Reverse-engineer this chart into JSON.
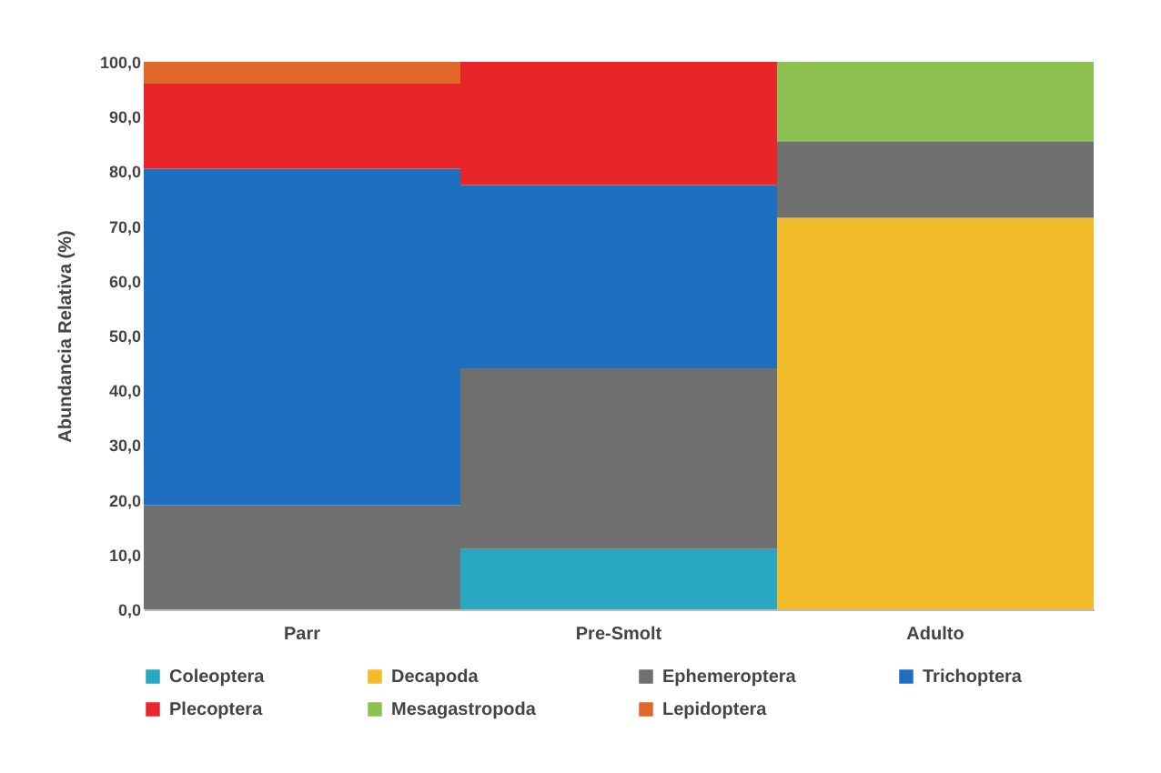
{
  "chart_data": {
    "type": "bar",
    "stacked": true,
    "ylabel": "Abundancia Relativa (%)",
    "categories": [
      "Parr",
      "Pre-Smolt",
      "Adulto"
    ],
    "series": [
      {
        "name": "Coleoptera",
        "color": "#2aa7c0",
        "values": [
          null,
          11,
          null
        ]
      },
      {
        "name": "Decapoda",
        "color": "#f2bb2a",
        "values": [
          null,
          null,
          71.5
        ]
      },
      {
        "name": "Ephemeroptera",
        "color": "#707070",
        "values": [
          19,
          33,
          14
        ]
      },
      {
        "name": "Trichoptera",
        "color": "#1f6fc0",
        "values": [
          61.5,
          33.5,
          null
        ]
      },
      {
        "name": "Plecoptera",
        "color": "#e8262a",
        "values": [
          15.5,
          22.5,
          null
        ]
      },
      {
        "name": "Mesagastropoda",
        "color": "#8cc152",
        "values": [
          null,
          null,
          14.5
        ]
      },
      {
        "name": "Lepidoptera",
        "color": "#e0672a",
        "values": [
          4,
          null,
          null
        ]
      }
    ],
    "ylim": [
      0,
      100
    ],
    "yticks": [
      {
        "value": 0,
        "label": "0,0"
      },
      {
        "value": 10,
        "label": "10,0"
      },
      {
        "value": 20,
        "label": "20,0"
      },
      {
        "value": 30,
        "label": "30,0"
      },
      {
        "value": 40,
        "label": "40,0"
      },
      {
        "value": 50,
        "label": "50,0"
      },
      {
        "value": 60,
        "label": "60,0"
      },
      {
        "value": 70,
        "label": "70,0"
      },
      {
        "value": 80,
        "label": "80,0"
      },
      {
        "value": 90,
        "label": "90,0"
      },
      {
        "value": 100,
        "label": "100,0"
      }
    ],
    "grid": false,
    "legend": "bottom"
  }
}
